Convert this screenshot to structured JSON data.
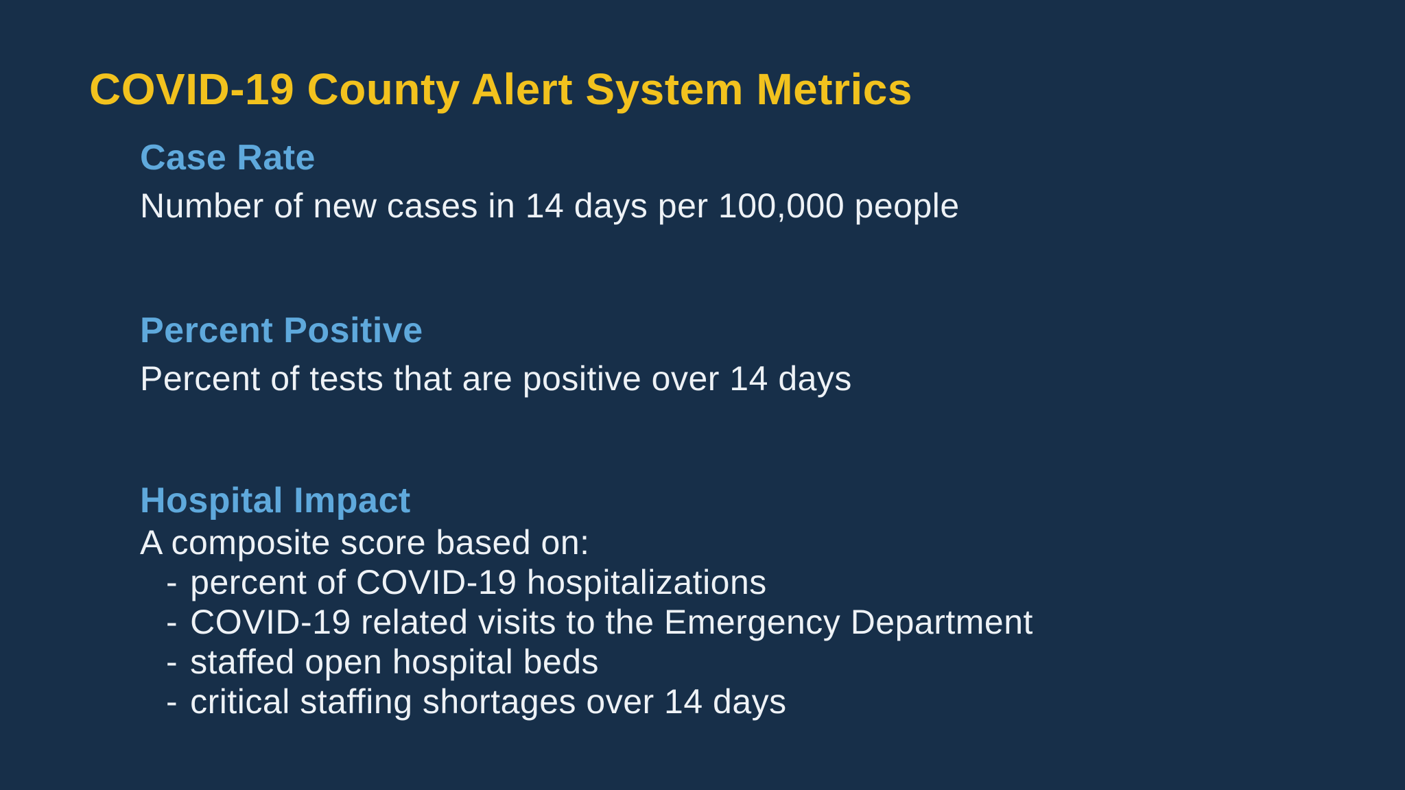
{
  "slide": {
    "title": "COVID-19 County Alert System Metrics",
    "bullet_char": "-",
    "colors": {
      "background": "#172f49",
      "title": "#f2c21e",
      "heading": "#5fa9dc",
      "body": "#eef2f6"
    },
    "sections": [
      {
        "heading": "Case Rate",
        "description": "Number of new cases in 14 days per 100,000 people"
      },
      {
        "heading": "Percent Positive",
        "description": "Percent of tests that are positive over 14 days"
      },
      {
        "heading": "Hospital Impact",
        "description": "A composite score based on:",
        "bullets": [
          "percent of COVID-19 hospitalizations",
          "COVID-19 related visits to the Emergency Department",
          "staffed open hospital beds",
          "critical staffing shortages over 14 days"
        ]
      }
    ]
  }
}
